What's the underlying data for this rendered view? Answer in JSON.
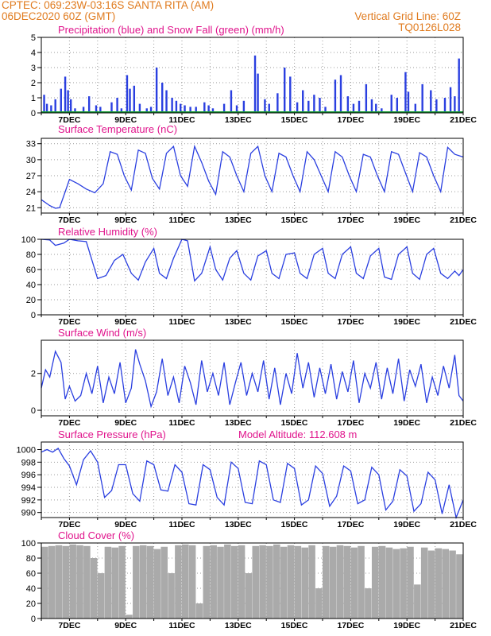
{
  "header": {
    "line1": "CPTEC:   069:23W-03:16S   SANTA RITA (AM)",
    "line2": "06DEC2020 60Z (GMT)",
    "right1": "Vertical Grid Line: 60Z",
    "right2": "TQ0126L028",
    "accent_color": "#e07b1f",
    "title_color": "#e0148c",
    "line_color": "#2a3fe0"
  },
  "x_ticks": [
    "7DEC",
    "9DEC",
    "11DEC",
    "13DEC",
    "15DEC",
    "17DEC",
    "19DEC",
    "21DEC"
  ],
  "chart_data": [
    {
      "type": "bar",
      "title": "Precipitation (blue) and Snow Fall (green) (mm/h)",
      "ylim": [
        0,
        5
      ],
      "yticks": [
        "0",
        "1",
        "2",
        "3",
        "4",
        "5"
      ],
      "x_range": [
        "06DEC2020",
        "21DEC2020"
      ],
      "series": [
        {
          "name": "Precipitation",
          "color": "#2a3fe0",
          "x": [
            6.1,
            6.2,
            6.35,
            6.5,
            6.7,
            6.85,
            6.95,
            7.05,
            7.2,
            7.5,
            7.7,
            7.95,
            8.1,
            8.5,
            8.7,
            8.85,
            9.05,
            9.15,
            9.3,
            9.5,
            9.75,
            9.9,
            10.1,
            10.3,
            10.45,
            10.65,
            10.8,
            10.95,
            11.1,
            11.3,
            11.5,
            11.8,
            11.95,
            12.1,
            12.5,
            12.75,
            12.95,
            13.2,
            13.6,
            13.7,
            13.95,
            14.1,
            14.4,
            14.65,
            14.85,
            15.1,
            15.3,
            15.5,
            15.7,
            15.9,
            16.1,
            16.45,
            16.65,
            16.9,
            17.1,
            17.3,
            17.55,
            17.75,
            17.9,
            18.1,
            18.45,
            18.65,
            18.95,
            19.05,
            19.3,
            19.55,
            19.85,
            20.05,
            20.35,
            20.55,
            20.7,
            20.85
          ],
          "values": [
            1.2,
            0.6,
            0.5,
            0.9,
            1.6,
            2.4,
            1.5,
            0.9,
            0.3,
            0.4,
            1.1,
            0.5,
            0.4,
            0.7,
            1.0,
            0.3,
            2.5,
            1.6,
            1.8,
            0.6,
            0.3,
            0.4,
            3.0,
            2.0,
            1.5,
            1.0,
            0.8,
            0.6,
            0.5,
            0.4,
            0.4,
            0.7,
            0.5,
            0.3,
            0.6,
            1.5,
            0.5,
            0.8,
            3.8,
            2.6,
            0.9,
            0.6,
            1.3,
            3.0,
            2.4,
            0.7,
            1.5,
            0.8,
            1.2,
            1.0,
            0.4,
            2.2,
            2.5,
            1.1,
            0.6,
            0.8,
            1.9,
            0.9,
            0.6,
            0.3,
            1.2,
            1.0,
            2.7,
            1.4,
            0.6,
            1.9,
            1.5,
            0.9,
            1.0,
            1.7,
            1.1,
            3.6
          ]
        },
        {
          "name": "Snow Fall",
          "color": "#1a9e3a",
          "x": [
            6.0,
            21.0
          ],
          "values": [
            0,
            0
          ]
        }
      ]
    },
    {
      "type": "line",
      "title": "Surface Temperature (nC)",
      "ylim": [
        20,
        34
      ],
      "yticks": [
        "21",
        "24",
        "27",
        "30",
        "33"
      ],
      "x_range": [
        "06DEC2020",
        "21DEC2020"
      ],
      "series": [
        {
          "name": "Temperature",
          "color": "#2a3fe0",
          "x": [
            6.0,
            6.3,
            6.5,
            6.65,
            6.85,
            7.0,
            7.3,
            7.6,
            7.9,
            8.2,
            8.45,
            8.7,
            8.95,
            9.2,
            9.45,
            9.7,
            9.95,
            10.2,
            10.45,
            10.7,
            10.95,
            11.2,
            11.45,
            11.7,
            11.95,
            12.2,
            12.45,
            12.7,
            12.95,
            13.2,
            13.45,
            13.7,
            13.95,
            14.2,
            14.45,
            14.7,
            14.95,
            15.2,
            15.45,
            15.7,
            15.95,
            16.2,
            16.45,
            16.7,
            16.95,
            17.2,
            17.45,
            17.7,
            17.95,
            18.2,
            18.45,
            18.7,
            18.95,
            19.2,
            19.45,
            19.7,
            19.95,
            20.2,
            20.45,
            20.7,
            21.0
          ],
          "values": [
            22.5,
            21.4,
            20.9,
            21.0,
            24.0,
            26.3,
            25.5,
            24.5,
            23.8,
            25.5,
            31.5,
            31.0,
            27.0,
            24.3,
            31.8,
            31.2,
            26.5,
            24.5,
            31.2,
            32.5,
            27.0,
            25.0,
            32.5,
            29.5,
            26.0,
            23.5,
            31.5,
            30.5,
            27.0,
            24.0,
            31.2,
            32.5,
            27.0,
            24.0,
            31.2,
            30.5,
            27.0,
            24.0,
            31.5,
            30.0,
            27.0,
            24.0,
            31.5,
            30.5,
            27.0,
            24.0,
            31.0,
            30.5,
            27.0,
            24.0,
            31.5,
            31.0,
            27.5,
            24.0,
            31.3,
            30.5,
            27.0,
            24.0,
            32.3,
            31.0,
            30.5
          ]
        }
      ]
    },
    {
      "type": "line",
      "title": "Relative Humidity (%)",
      "ylim": [
        0,
        100
      ],
      "yticks": [
        "0",
        "20",
        "40",
        "60",
        "80",
        "100"
      ],
      "x_range": [
        "06DEC2020",
        "21DEC2020"
      ],
      "series": [
        {
          "name": "Relative Humidity",
          "color": "#2a3fe0",
          "x": [
            6.0,
            6.3,
            6.5,
            6.8,
            7.0,
            7.3,
            7.6,
            8.0,
            8.3,
            8.6,
            8.9,
            9.2,
            9.45,
            9.7,
            10.0,
            10.2,
            10.45,
            10.7,
            11.0,
            11.2,
            11.45,
            11.7,
            12.0,
            12.2,
            12.45,
            12.7,
            12.95,
            13.2,
            13.45,
            13.7,
            14.0,
            14.2,
            14.45,
            14.7,
            15.0,
            15.2,
            15.45,
            15.7,
            16.0,
            16.2,
            16.45,
            16.7,
            17.0,
            17.2,
            17.45,
            17.7,
            18.0,
            18.2,
            18.45,
            18.7,
            19.0,
            19.2,
            19.45,
            19.7,
            19.95,
            20.2,
            20.45,
            20.7,
            20.85,
            21.0
          ],
          "values": [
            100,
            99,
            92,
            95,
            100,
            98,
            97,
            48,
            52,
            72,
            80,
            55,
            46,
            70,
            88,
            55,
            48,
            75,
            100,
            98,
            45,
            55,
            90,
            60,
            46,
            75,
            85,
            55,
            46,
            78,
            85,
            55,
            48,
            80,
            82,
            55,
            48,
            80,
            88,
            55,
            48,
            80,
            90,
            55,
            48,
            78,
            88,
            50,
            47,
            80,
            90,
            55,
            47,
            80,
            88,
            55,
            48,
            58,
            52,
            60
          ]
        }
      ]
    },
    {
      "type": "line",
      "title": "Surface Wind (m/s)",
      "ylim": [
        -0.3,
        3.8
      ],
      "yticks": [
        "0",
        "2"
      ],
      "x_range": [
        "06DEC2020",
        "21DEC2020"
      ],
      "series": [
        {
          "name": "Wind Speed",
          "color": "#2a3fe0",
          "x": [
            6.0,
            6.15,
            6.3,
            6.5,
            6.7,
            6.85,
            7.0,
            7.2,
            7.4,
            7.6,
            7.8,
            8.0,
            8.2,
            8.4,
            8.6,
            8.8,
            9.0,
            9.2,
            9.35,
            9.5,
            9.7,
            9.9,
            10.1,
            10.3,
            10.5,
            10.7,
            10.9,
            11.1,
            11.3,
            11.5,
            11.7,
            11.9,
            12.1,
            12.3,
            12.5,
            12.7,
            12.9,
            13.1,
            13.3,
            13.5,
            13.7,
            13.9,
            14.1,
            14.3,
            14.5,
            14.7,
            14.9,
            15.1,
            15.3,
            15.5,
            15.7,
            15.9,
            16.1,
            16.3,
            16.5,
            16.7,
            16.9,
            17.1,
            17.3,
            17.5,
            17.7,
            17.9,
            18.1,
            18.3,
            18.5,
            18.7,
            18.9,
            19.1,
            19.3,
            19.5,
            19.7,
            19.9,
            20.1,
            20.3,
            20.5,
            20.7,
            20.85,
            21.0
          ],
          "values": [
            1.2,
            2.2,
            1.8,
            3.2,
            2.6,
            0.6,
            1.3,
            0.5,
            0.8,
            2.0,
            0.9,
            2.4,
            0.4,
            1.8,
            0.9,
            2.6,
            0.4,
            1.2,
            3.3,
            2.5,
            1.6,
            0.2,
            1.0,
            2.8,
            0.8,
            1.8,
            0.4,
            2.4,
            1.5,
            0.3,
            2.7,
            1.0,
            2.0,
            0.8,
            2.6,
            0.3,
            1.5,
            2.6,
            0.8,
            2.0,
            1.0,
            2.7,
            0.6,
            2.3,
            0.3,
            2.0,
            0.9,
            3.1,
            1.2,
            2.6,
            0.7,
            2.3,
            0.9,
            2.5,
            0.6,
            2.1,
            1.0,
            2.7,
            0.4,
            2.0,
            1.2,
            2.6,
            0.6,
            2.3,
            0.9,
            2.8,
            0.5,
            2.2,
            1.3,
            2.5,
            0.4,
            1.8,
            0.8,
            2.4,
            1.2,
            3.0,
            0.8,
            0.5
          ]
        }
      ]
    },
    {
      "type": "line",
      "title": "Surface Pressure (hPa)",
      "annotation": "Model Altitude: 112.608 m",
      "ylim": [
        989.2,
        1001.2
      ],
      "yticks": [
        "990",
        "992",
        "994",
        "996",
        "998",
        "1000"
      ],
      "x_range": [
        "06DEC2020",
        "21DEC2020"
      ],
      "series": [
        {
          "name": "Surface Pressure",
          "color": "#2a3fe0",
          "x": [
            6.0,
            6.2,
            6.4,
            6.6,
            6.8,
            7.0,
            7.25,
            7.5,
            7.75,
            8.0,
            8.25,
            8.5,
            8.75,
            9.0,
            9.25,
            9.5,
            9.75,
            10.0,
            10.25,
            10.5,
            10.75,
            11.0,
            11.25,
            11.5,
            11.75,
            12.0,
            12.25,
            12.5,
            12.75,
            13.0,
            13.25,
            13.5,
            13.75,
            14.0,
            14.25,
            14.5,
            14.75,
            15.0,
            15.25,
            15.5,
            15.75,
            16.0,
            16.25,
            16.5,
            16.75,
            17.0,
            17.25,
            17.5,
            17.75,
            18.0,
            18.25,
            18.5,
            18.75,
            19.0,
            19.25,
            19.5,
            19.75,
            20.0,
            20.25,
            20.5,
            20.75,
            21.0
          ],
          "values": [
            999.6,
            1000.0,
            999.6,
            1000.2,
            998.6,
            997.4,
            994.4,
            998.4,
            999.8,
            998.0,
            992.4,
            993.5,
            997.6,
            997.6,
            993.0,
            991.8,
            998.2,
            997.6,
            993.6,
            993.4,
            997.6,
            996.4,
            991.4,
            991.2,
            997.6,
            996.8,
            992.4,
            991.2,
            998.0,
            997.0,
            991.6,
            991.4,
            998.2,
            997.6,
            992.0,
            991.6,
            997.8,
            997.0,
            991.2,
            992.0,
            997.4,
            996.2,
            991.0,
            992.6,
            997.4,
            996.6,
            991.4,
            992.0,
            997.2,
            996.0,
            990.4,
            991.8,
            996.8,
            995.8,
            990.2,
            991.4,
            996.4,
            995.2,
            989.8,
            994.4,
            989.2,
            992.0
          ]
        }
      ]
    },
    {
      "type": "bar",
      "title": "Cloud Cover (%)",
      "ylim": [
        0,
        100
      ],
      "yticks": [
        "0",
        "20",
        "40",
        "60",
        "80",
        "100"
      ],
      "x_range": [
        "06DEC2020",
        "21DEC2020"
      ],
      "series": [
        {
          "name": "Cloud Cover",
          "color": "#aaaaaa",
          "x": [
            6.0,
            6.25,
            6.5,
            6.75,
            7.0,
            7.25,
            7.5,
            7.75,
            8.0,
            8.25,
            8.5,
            8.75,
            9.0,
            9.25,
            9.5,
            9.75,
            10.0,
            10.25,
            10.5,
            10.75,
            11.0,
            11.25,
            11.5,
            11.75,
            12.0,
            12.25,
            12.5,
            12.75,
            13.0,
            13.25,
            13.5,
            13.75,
            14.0,
            14.25,
            14.5,
            14.75,
            15.0,
            15.25,
            15.5,
            15.75,
            16.0,
            16.25,
            16.5,
            16.75,
            17.0,
            17.25,
            17.5,
            17.75,
            18.0,
            18.25,
            18.5,
            18.75,
            19.0,
            19.25,
            19.5,
            19.75,
            20.0,
            20.25,
            20.5,
            20.75
          ],
          "values": [
            95,
            96,
            97,
            96,
            98,
            97,
            96,
            80,
            60,
            95,
            94,
            96,
            5,
            96,
            97,
            96,
            92,
            95,
            60,
            97,
            98,
            97,
            20,
            96,
            97,
            95,
            98,
            96,
            97,
            60,
            96,
            97,
            96,
            98,
            95,
            97,
            96,
            94,
            97,
            40,
            96,
            95,
            97,
            96,
            94,
            96,
            40,
            95,
            96,
            94,
            92,
            93,
            95,
            45,
            94,
            90,
            93,
            92,
            90,
            85
          ]
        }
      ]
    }
  ]
}
